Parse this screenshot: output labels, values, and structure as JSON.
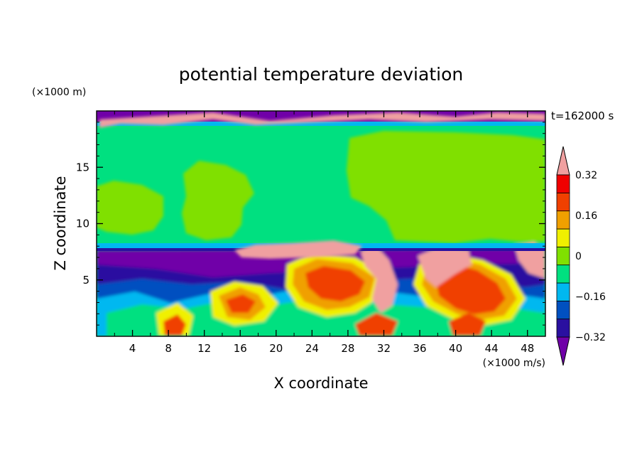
{
  "chart_data": {
    "type": "heatmap",
    "title": "potential temperature deviation",
    "xlabel": "X coordinate",
    "ylabel": "Z coordinate",
    "x_unit": "(×1000 m/s)",
    "y_unit": "(×1000 m)",
    "time_label": "t=162000 s",
    "xlim": [
      0,
      50
    ],
    "ylim": [
      0,
      20
    ],
    "x_ticks": [
      4,
      8,
      12,
      16,
      20,
      24,
      28,
      32,
      36,
      40,
      44,
      48
    ],
    "y_ticks": [
      5,
      10,
      15
    ],
    "grid": false,
    "colorbar": {
      "levels": [
        -0.4,
        -0.32,
        -0.24,
        -0.16,
        -0.08,
        0,
        0.08,
        0.16,
        0.24,
        0.32,
        0.4
      ],
      "tick_labels": [
        "0.32",
        "0.16",
        "0",
        "−0.16",
        "−0.32"
      ],
      "tick_values": [
        0.32,
        0.16,
        0,
        -0.16,
        -0.32
      ],
      "colors": [
        "#7000A8",
        "#2A10A0",
        "#0050C0",
        "#00B8F0",
        "#00E080",
        "#80E000",
        "#F0F000",
        "#F0A000",
        "#F04000",
        "#F00000",
        "#F0A0A0"
      ]
    }
  }
}
